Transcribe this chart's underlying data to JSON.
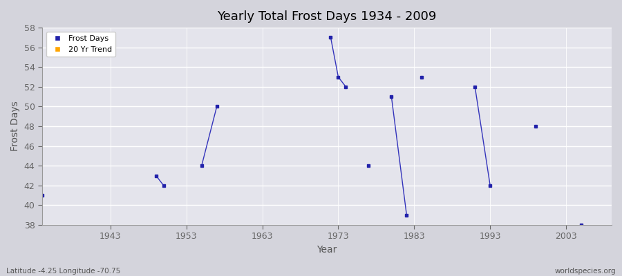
{
  "title": "Yearly Total Frost Days 1934 - 2009",
  "xlabel": "Year",
  "ylabel": "Frost Days",
  "xlim": [
    1934,
    2009
  ],
  "ylim": [
    38,
    58
  ],
  "yticks": [
    38,
    40,
    42,
    44,
    46,
    48,
    50,
    52,
    54,
    56,
    58
  ],
  "xticks": [
    1943,
    1953,
    1963,
    1973,
    1983,
    1993,
    2003
  ],
  "fig_bg_color": "#d8d8e0",
  "plot_bg_color": "#e0e0e8",
  "line_color": "#3333bb",
  "point_color": "#2222aa",
  "legend_labels": [
    "Frost Days",
    "20 Yr Trend"
  ],
  "legend_colors": [
    "#2222aa",
    "#ffa500"
  ],
  "subtitle": "Latitude -4.25 Longitude -70.75",
  "watermark": "worldspecies.org",
  "frost_segments": [
    [
      [
        1934,
        41
      ]
    ],
    [
      [
        1949,
        43
      ],
      [
        1950,
        42
      ]
    ],
    [
      [
        1955,
        44
      ],
      [
        1957,
        50
      ]
    ],
    [
      [
        1972,
        57
      ],
      [
        1973,
        53
      ],
      [
        1974,
        52
      ]
    ],
    [
      [
        1977,
        44
      ]
    ],
    [
      [
        1980,
        51
      ],
      [
        1982,
        39
      ]
    ],
    [
      [
        1984,
        53
      ]
    ],
    [
      [
        1991,
        52
      ],
      [
        1993,
        42
      ]
    ],
    [
      [
        1999,
        48
      ]
    ],
    [
      [
        2005,
        38
      ]
    ]
  ]
}
